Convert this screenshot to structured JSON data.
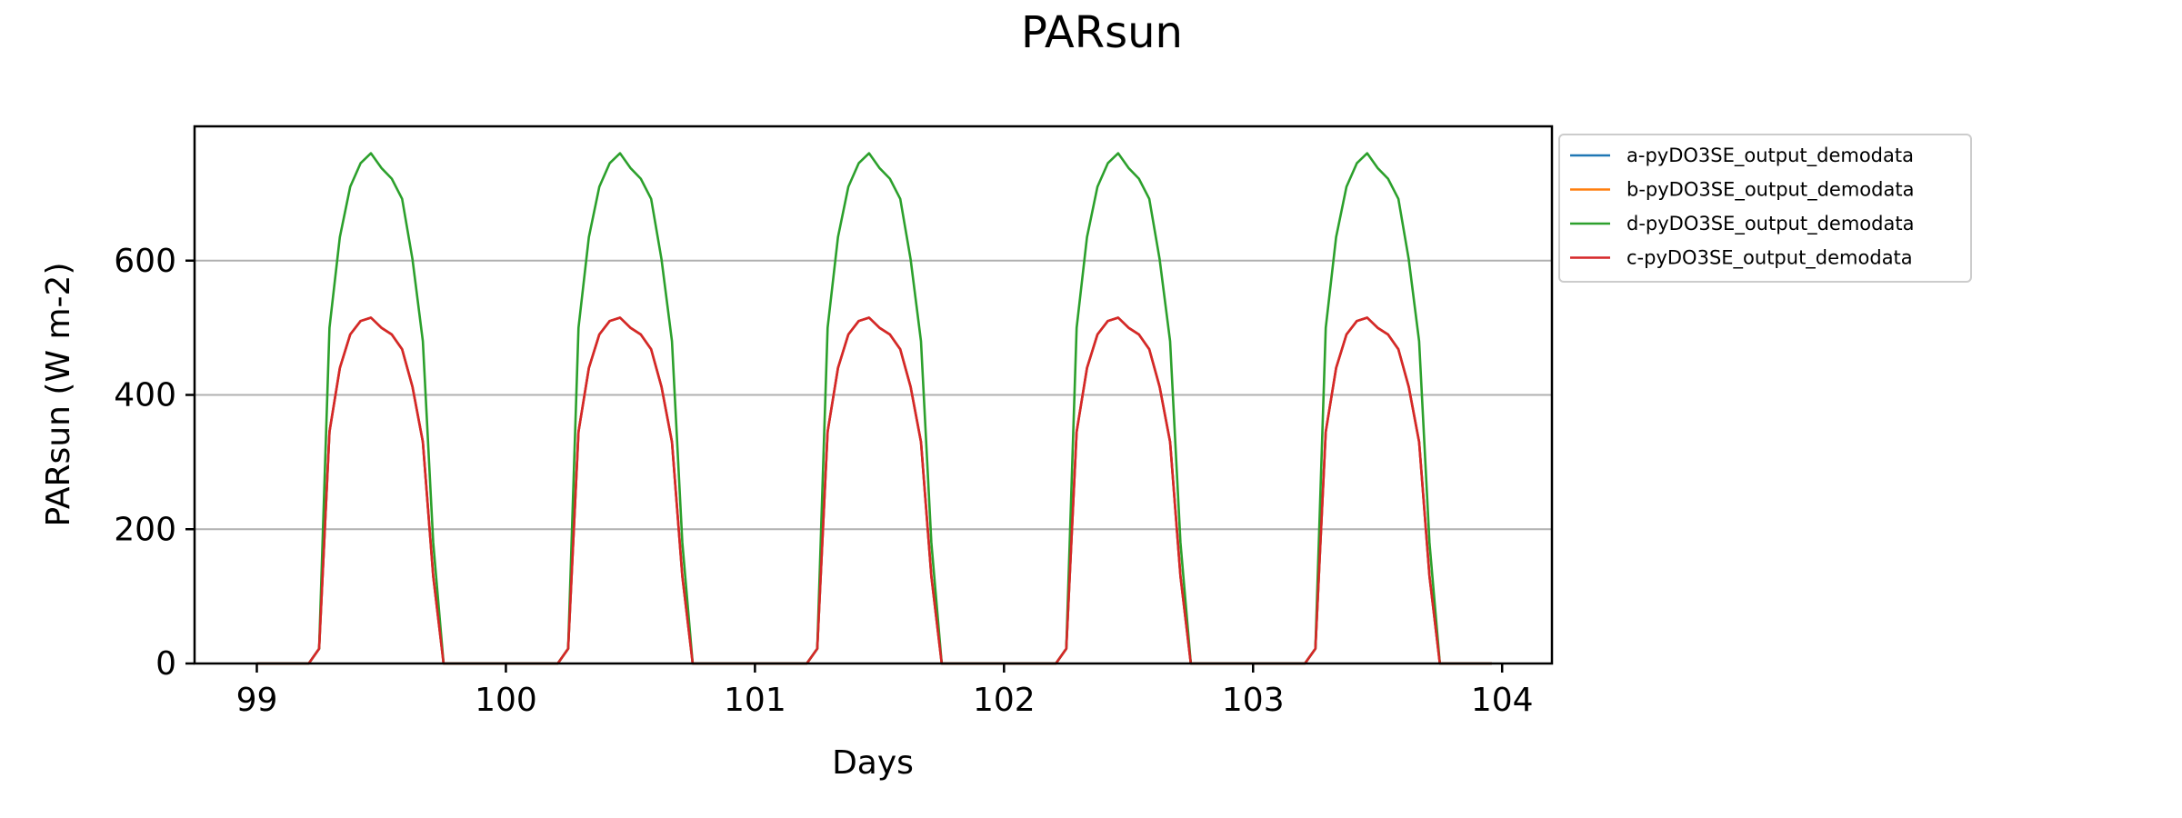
{
  "chart_data": {
    "type": "line",
    "title": "PARsun",
    "xlabel": "Days",
    "ylabel": "PARsun (W m-2)",
    "xlim": [
      98.75,
      104.2
    ],
    "ylim": [
      0,
      800
    ],
    "xticks": [
      99,
      100,
      101,
      102,
      103,
      104
    ],
    "yticks": [
      0,
      200,
      400,
      600
    ],
    "grid": "y",
    "legend_position": "outside-top-right",
    "colors": {
      "a": "#1f77b4",
      "b": "#ff7f0e",
      "d": "#2ca02c",
      "c": "#d62728",
      "grid": "#b0b0b0"
    },
    "day_profile_hours": [
      0,
      1,
      2,
      3,
      4,
      5,
      6,
      7,
      8,
      9,
      10,
      11,
      12,
      13,
      14,
      15,
      16,
      17,
      18,
      19,
      20,
      21,
      22,
      23
    ],
    "series": [
      {
        "name": "a-pyDO3SE_output_demodata",
        "color": "#1f77b4",
        "days": [
          99,
          100,
          101,
          102,
          103
        ],
        "profile": [
          0,
          0,
          0,
          0,
          0,
          0,
          22,
          345,
          440,
          490,
          510,
          515,
          500,
          490,
          468,
          412,
          330,
          130,
          0,
          0,
          0,
          0,
          0,
          0
        ]
      },
      {
        "name": "b-pyDO3SE_output_demodata",
        "color": "#ff7f0e",
        "days": [
          99,
          100,
          101,
          102,
          103
        ],
        "profile": [
          0,
          0,
          0,
          0,
          0,
          0,
          22,
          345,
          440,
          490,
          510,
          515,
          500,
          490,
          468,
          412,
          330,
          130,
          0,
          0,
          0,
          0,
          0,
          0
        ]
      },
      {
        "name": "d-pyDO3SE_output_demodata",
        "color": "#2ca02c",
        "days": [
          99,
          100,
          101,
          102,
          103
        ],
        "profile": [
          0,
          0,
          0,
          0,
          0,
          0,
          22,
          500,
          635,
          710,
          745,
          760,
          738,
          722,
          692,
          602,
          480,
          180,
          0,
          0,
          0,
          0,
          0,
          0
        ]
      },
      {
        "name": "c-pyDO3SE_output_demodata",
        "color": "#d62728",
        "days": [
          99,
          100,
          101,
          102,
          103
        ],
        "profile": [
          0,
          0,
          0,
          0,
          0,
          0,
          22,
          345,
          440,
          490,
          510,
          515,
          500,
          490,
          468,
          412,
          330,
          130,
          0,
          0,
          0,
          0,
          0,
          0
        ]
      }
    ]
  }
}
